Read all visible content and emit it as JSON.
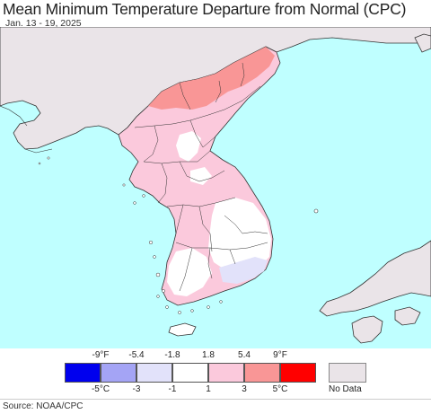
{
  "header": {
    "title": "Mean Minimum Temperature Departure from Normal (CPC)",
    "date_range": "Jan. 13 - 19, 2025"
  },
  "map": {
    "colors": {
      "sea": "#bfffff",
      "other_land": "#eae4e8",
      "border": "#333333"
    }
  },
  "legend": {
    "f_labels": [
      "-9°F",
      "-5.4",
      "-1.8",
      "1.8",
      "5.4",
      "9°F"
    ],
    "c_labels": [
      "-5°C",
      "-3",
      "-1",
      "1",
      "3",
      "5°C"
    ],
    "colors": [
      "#0000ee",
      "#a4a4f5",
      "#e2e2fa",
      "#ffffff",
      "#fbc9dc",
      "#f99696",
      "#ff0000"
    ],
    "nodata_label": "No Data"
  },
  "footer": {
    "source": "Source: NOAA/CPC"
  }
}
